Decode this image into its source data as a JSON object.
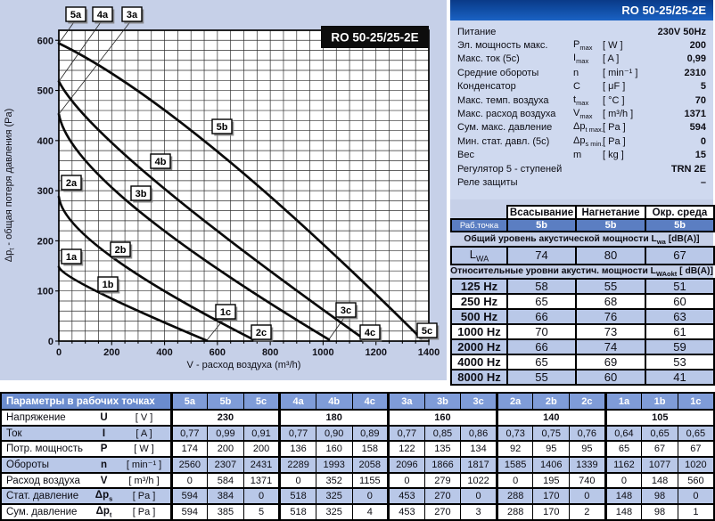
{
  "model": "RO 50-25/25-2E",
  "chart_data": {
    "type": "line",
    "title": "RO 50-25/25-2E",
    "xlabel": "V - расход воздуха (m³/h)",
    "ylabel_parts": [
      "Δp",
      "t",
      " - общая потеря давления (Pa)"
    ],
    "xlim": [
      0,
      1400
    ],
    "ylim": [
      0,
      620
    ],
    "x_major_ticks": [
      0,
      200,
      400,
      600,
      800,
      1000,
      1200,
      1400
    ],
    "y_major_ticks": [
      0,
      100,
      200,
      300,
      400,
      500,
      600
    ],
    "x_minor_step": 50,
    "y_minor_step": 20,
    "grid": true,
    "series": [
      {
        "name": "speed-5",
        "points": [
          {
            "label": "5a",
            "v": 0,
            "p": 594
          },
          {
            "label": "5b",
            "v": 584,
            "p": 385
          },
          {
            "label": "5c",
            "v": 1371,
            "p": 5
          }
        ]
      },
      {
        "name": "speed-4",
        "points": [
          {
            "label": "4a",
            "v": 0,
            "p": 518
          },
          {
            "label": "4b",
            "v": 352,
            "p": 325
          },
          {
            "label": "4c",
            "v": 1155,
            "p": 4
          }
        ]
      },
      {
        "name": "speed-3",
        "points": [
          {
            "label": "3a",
            "v": 0,
            "p": 453
          },
          {
            "label": "3b",
            "v": 279,
            "p": 270
          },
          {
            "label": "3c",
            "v": 1022,
            "p": 3
          }
        ]
      },
      {
        "name": "speed-2",
        "points": [
          {
            "label": "2a",
            "v": 0,
            "p": 288
          },
          {
            "label": "2b",
            "v": 195,
            "p": 170
          },
          {
            "label": "2c",
            "v": 740,
            "p": 2
          }
        ]
      },
      {
        "name": "speed-1",
        "points": [
          {
            "label": "1a",
            "v": 0,
            "p": 148
          },
          {
            "label": "1b",
            "v": 148,
            "p": 98
          },
          {
            "label": "1c",
            "v": 560,
            "p": 1
          }
        ]
      }
    ]
  },
  "spec_panel": {
    "header": "RO 50-25/25-2E",
    "rows": [
      {
        "label": "Питание",
        "sym": "",
        "sym_sub": "",
        "unit": "",
        "value": "230V 50Hz"
      },
      {
        "label": "Эл. мощность  макс.",
        "sym": "P",
        "sym_sub": "max",
        "unit": "[ W ]",
        "value": "200"
      },
      {
        "label": "Макс. ток  (5с)",
        "sym": "I",
        "sym_sub": "max",
        "unit": "[ A ]",
        "value": "0,99"
      },
      {
        "label": "Средние обороты",
        "sym": "n",
        "sym_sub": "",
        "unit": "[ min⁻¹ ]",
        "value": "2310"
      },
      {
        "label": "Конденсатор",
        "sym": "C",
        "sym_sub": "",
        "unit": "[ μF ]",
        "value": "5"
      },
      {
        "label": "Макс. темп. воздуха",
        "sym": "t",
        "sym_sub": "max",
        "unit": "[ °C ]",
        "value": "70"
      },
      {
        "label": "Макс. расход воздуха",
        "sym": "V",
        "sym_sub": "max",
        "unit": "[ m³/h ]",
        "value": "1371"
      },
      {
        "label": "Сум. макс. давление",
        "sym": "Δp",
        "sym_sub": "t max.",
        "unit": "[ Pa ]",
        "value": "594"
      },
      {
        "label": "Мин. стат. давл. (5с)",
        "sym": "Δp",
        "sym_sub": "s min.",
        "unit": "[ Pa ]",
        "value": "0"
      },
      {
        "label": "Вес",
        "sym": "m",
        "sym_sub": "",
        "unit": "[ kg ]",
        "value": "15"
      },
      {
        "label": "Регулятор  5 -  ступеней",
        "sym": "",
        "sym_sub": "",
        "unit": "",
        "value": "TRN 2E"
      },
      {
        "label": "Реле защиты",
        "sym": "",
        "sym_sub": "",
        "unit": "",
        "value": "–"
      }
    ]
  },
  "acoustic": {
    "col_headers": [
      "Всасывание",
      "Нагнетание",
      "Окр. среда"
    ],
    "point_row": {
      "label": "Раб.точка",
      "values": [
        "5b",
        "5b",
        "5b"
      ]
    },
    "total_caption": {
      "pre": "Общий уровень акустической мощности L",
      "sub": "wa",
      "post": " [dB(A)]"
    },
    "lwa_row": {
      "label": "L",
      "label_sub": "WA",
      "values": [
        "74",
        "80",
        "67"
      ]
    },
    "rel_caption": {
      "pre": "Относительные уровни акустич. мощности L",
      "sub": "WAokt",
      "post": " [ dB(A)]"
    },
    "bands": [
      {
        "freq": "125 Hz",
        "values": [
          "58",
          "55",
          "51"
        ]
      },
      {
        "freq": "250 Hz",
        "values": [
          "65",
          "68",
          "60"
        ]
      },
      {
        "freq": "500 Hz",
        "values": [
          "66",
          "76",
          "63"
        ]
      },
      {
        "freq": "1000 Hz",
        "values": [
          "70",
          "73",
          "61"
        ]
      },
      {
        "freq": "2000 Hz",
        "values": [
          "66",
          "74",
          "59"
        ]
      },
      {
        "freq": "4000 Hz",
        "values": [
          "65",
          "69",
          "53"
        ]
      },
      {
        "freq": "8000 Hz",
        "values": [
          "55",
          "60",
          "41"
        ]
      }
    ]
  },
  "params_table": {
    "header": "Параметры в рабочих точках",
    "col_headers": [
      "5a",
      "5b",
      "5c",
      "4a",
      "4b",
      "4c",
      "3a",
      "3b",
      "3c",
      "2a",
      "2b",
      "2c",
      "1a",
      "1b",
      "1c"
    ],
    "voltage_row": {
      "label": "Напряжение",
      "sym": "U",
      "sym_sub": "",
      "unit": "[ V ]",
      "groups": [
        "230",
        "180",
        "160",
        "140",
        "105"
      ]
    },
    "rows": [
      {
        "label": "Ток",
        "sym": "I",
        "sym_sub": "",
        "unit": "[ A ]",
        "shaded": true,
        "values": [
          "0,77",
          "0,99",
          "0,91",
          "0,77",
          "0,90",
          "0,89",
          "0,77",
          "0,85",
          "0,86",
          "0,73",
          "0,75",
          "0,76",
          "0,64",
          "0,65",
          "0,65"
        ]
      },
      {
        "label": "Потр. мощность",
        "sym": "P",
        "sym_sub": "",
        "unit": "[ W ]",
        "shaded": false,
        "values": [
          "174",
          "200",
          "200",
          "136",
          "160",
          "158",
          "122",
          "135",
          "134",
          "92",
          "95",
          "95",
          "65",
          "67",
          "67"
        ]
      },
      {
        "label": "Обороты",
        "sym": "n",
        "sym_sub": "",
        "unit": "[ min⁻¹ ]",
        "shaded": true,
        "values": [
          "2560",
          "2307",
          "2431",
          "2289",
          "1993",
          "2058",
          "2096",
          "1866",
          "1817",
          "1585",
          "1406",
          "1339",
          "1162",
          "1077",
          "1020"
        ]
      },
      {
        "label": "Расход воздуха",
        "sym": "V",
        "sym_sub": "",
        "unit": "[ m³/h ]",
        "shaded": false,
        "values": [
          "0",
          "584",
          "1371",
          "0",
          "352",
          "1155",
          "0",
          "279",
          "1022",
          "0",
          "195",
          "740",
          "0",
          "148",
          "560"
        ]
      },
      {
        "label": "Стат. давление",
        "sym": "Δp",
        "sym_sub": "s",
        "unit": "[ Pa ]",
        "shaded": true,
        "values": [
          "594",
          "384",
          "0",
          "518",
          "325",
          "0",
          "453",
          "270",
          "0",
          "288",
          "170",
          "0",
          "148",
          "98",
          "0"
        ]
      },
      {
        "label": "Сум. давление",
        "sym": "Δp",
        "sym_sub": "t",
        "unit": "[ Pa ]",
        "shaded": false,
        "values": [
          "594",
          "385",
          "5",
          "518",
          "325",
          "4",
          "453",
          "270",
          "3",
          "288",
          "170",
          "2",
          "148",
          "98",
          "1"
        ]
      }
    ]
  },
  "colors": {
    "page_bg": "#c6d0e8",
    "spec_body_bg": "#cfd9ef",
    "header_blue": "#1458b0",
    "cell_blue": "#5b7ec2",
    "cell_light_blue": "#b9c8e8",
    "params_bar_blue": "#6b8cce",
    "params_head_blue": "#7f9cd8",
    "curve_black": "#0a0a0a"
  }
}
